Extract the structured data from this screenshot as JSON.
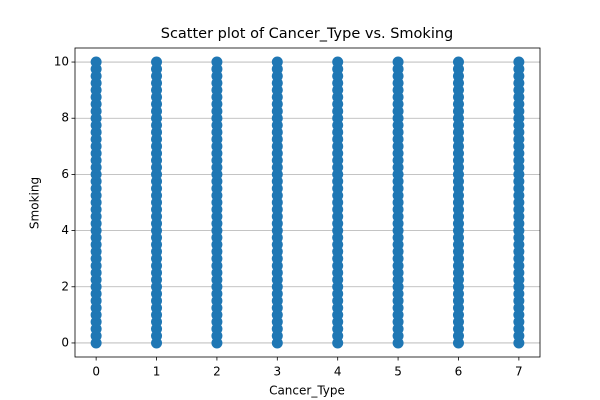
{
  "chart_data": {
    "type": "scatter",
    "title": "Scatter plot of Cancer_Type vs. Smoking",
    "x_label": "Cancer_Type",
    "y_label": "Smoking",
    "color": "#1f77b4",
    "grid": "y",
    "xlim": [
      -0.35,
      7.35
    ],
    "xticks": [
      0,
      1,
      2,
      3,
      4,
      5,
      6,
      7
    ],
    "ylim": [
      -0.5,
      10.5
    ],
    "yticks": [
      0,
      2,
      4,
      6,
      8,
      10
    ],
    "x": [
      0,
      0,
      0,
      0,
      0,
      0,
      0,
      0,
      0,
      0,
      0,
      0,
      0,
      0,
      0,
      0,
      0,
      0,
      0,
      0,
      0,
      0,
      0,
      0,
      0,
      0,
      0,
      0,
      0,
      0,
      0,
      0,
      0,
      0,
      0,
      0,
      0,
      0,
      0,
      0,
      0,
      1,
      1,
      1,
      1,
      1,
      1,
      1,
      1,
      1,
      1,
      1,
      1,
      1,
      1,
      1,
      1,
      1,
      1,
      1,
      1,
      1,
      1,
      1,
      1,
      1,
      1,
      1,
      1,
      1,
      1,
      1,
      1,
      1,
      1,
      1,
      1,
      1,
      1,
      1,
      1,
      1,
      2,
      2,
      2,
      2,
      2,
      2,
      2,
      2,
      2,
      2,
      2,
      2,
      2,
      2,
      2,
      2,
      2,
      2,
      2,
      2,
      2,
      2,
      2,
      2,
      2,
      2,
      2,
      2,
      2,
      2,
      2,
      2,
      2,
      2,
      2,
      2,
      2,
      2,
      2,
      2,
      2,
      3,
      3,
      3,
      3,
      3,
      3,
      3,
      3,
      3,
      3,
      3,
      3,
      3,
      3,
      3,
      3,
      3,
      3,
      3,
      3,
      3,
      3,
      3,
      3,
      3,
      3,
      3,
      3,
      3,
      3,
      3,
      3,
      3,
      3,
      3,
      3,
      3,
      3,
      3,
      3,
      3,
      4,
      4,
      4,
      4,
      4,
      4,
      4,
      4,
      4,
      4,
      4,
      4,
      4,
      4,
      4,
      4,
      4,
      4,
      4,
      4,
      4,
      4,
      4,
      4,
      4,
      4,
      4,
      4,
      4,
      4,
      4,
      4,
      4,
      4,
      4,
      4,
      4,
      4,
      4,
      4,
      4,
      5,
      5,
      5,
      5,
      5,
      5,
      5,
      5,
      5,
      5,
      5,
      5,
      5,
      5,
      5,
      5,
      5,
      5,
      5,
      5,
      5,
      5,
      5,
      5,
      5,
      5,
      5,
      5,
      5,
      5,
      5,
      5,
      5,
      5,
      5,
      5,
      5,
      5,
      5,
      5,
      5,
      6,
      6,
      6,
      6,
      6,
      6,
      6,
      6,
      6,
      6,
      6,
      6,
      6,
      6,
      6,
      6,
      6,
      6,
      6,
      6,
      6,
      6,
      6,
      6,
      6,
      6,
      6,
      6,
      6,
      6,
      6,
      6,
      6,
      6,
      6,
      6,
      6,
      6,
      6,
      6,
      6,
      7,
      7,
      7,
      7,
      7,
      7,
      7,
      7,
      7,
      7,
      7,
      7,
      7,
      7,
      7,
      7,
      7,
      7,
      7,
      7,
      7,
      7,
      7,
      7,
      7,
      7,
      7,
      7,
      7,
      7,
      7,
      7,
      7,
      7,
      7,
      7,
      7,
      7,
      7,
      7,
      7
    ],
    "y": [
      0,
      0.25,
      0.5,
      0.75,
      1,
      1.25,
      1.5,
      1.75,
      2,
      2.25,
      2.5,
      2.75,
      3,
      3.25,
      3.5,
      3.75,
      4,
      4.25,
      4.5,
      4.75,
      5,
      5.25,
      5.5,
      5.75,
      6,
      6.25,
      6.5,
      6.75,
      7,
      7.25,
      7.5,
      7.75,
      8,
      8.25,
      8.5,
      8.75,
      9,
      9.25,
      9.5,
      9.75,
      10,
      0,
      0.25,
      0.5,
      0.75,
      1,
      1.25,
      1.5,
      1.75,
      2,
      2.25,
      2.5,
      2.75,
      3,
      3.25,
      3.5,
      3.75,
      4,
      4.25,
      4.5,
      4.75,
      5,
      5.25,
      5.5,
      5.75,
      6,
      6.25,
      6.5,
      6.75,
      7,
      7.25,
      7.5,
      7.75,
      8,
      8.25,
      8.5,
      8.75,
      9,
      9.25,
      9.5,
      9.75,
      10,
      0,
      0.25,
      0.5,
      0.75,
      1,
      1.25,
      1.5,
      1.75,
      2,
      2.25,
      2.5,
      2.75,
      3,
      3.25,
      3.5,
      3.75,
      4,
      4.25,
      4.5,
      4.75,
      5,
      5.25,
      5.5,
      5.75,
      6,
      6.25,
      6.5,
      6.75,
      7,
      7.25,
      7.5,
      7.75,
      8,
      8.25,
      8.5,
      8.75,
      9,
      9.25,
      9.5,
      9.75,
      10,
      0,
      0.25,
      0.5,
      0.75,
      1,
      1.25,
      1.5,
      1.75,
      2,
      2.25,
      2.5,
      2.75,
      3,
      3.25,
      3.5,
      3.75,
      4,
      4.25,
      4.5,
      4.75,
      5,
      5.25,
      5.5,
      5.75,
      6,
      6.25,
      6.5,
      6.75,
      7,
      7.25,
      7.5,
      7.75,
      8,
      8.25,
      8.5,
      8.75,
      9,
      9.25,
      9.5,
      9.75,
      10,
      0,
      0.25,
      0.5,
      0.75,
      1,
      1.25,
      1.5,
      1.75,
      2,
      2.25,
      2.5,
      2.75,
      3,
      3.25,
      3.5,
      3.75,
      4,
      4.25,
      4.5,
      4.75,
      5,
      5.25,
      5.5,
      5.75,
      6,
      6.25,
      6.5,
      6.75,
      7,
      7.25,
      7.5,
      7.75,
      8,
      8.25,
      8.5,
      8.75,
      9,
      9.25,
      9.5,
      9.75,
      10,
      0,
      0.25,
      0.5,
      0.75,
      1,
      1.25,
      1.5,
      1.75,
      2,
      2.25,
      2.5,
      2.75,
      3,
      3.25,
      3.5,
      3.75,
      4,
      4.25,
      4.5,
      4.75,
      5,
      5.25,
      5.5,
      5.75,
      6,
      6.25,
      6.5,
      6.75,
      7,
      7.25,
      7.5,
      7.75,
      8,
      8.25,
      8.5,
      8.75,
      9,
      9.25,
      9.5,
      9.75,
      10,
      0,
      0.25,
      0.5,
      0.75,
      1,
      1.25,
      1.5,
      1.75,
      2,
      2.25,
      2.5,
      2.75,
      3,
      3.25,
      3.5,
      3.75,
      4,
      4.25,
      4.5,
      4.75,
      5,
      5.25,
      5.5,
      5.75,
      6,
      6.25,
      6.5,
      6.75,
      7,
      7.25,
      7.5,
      7.75,
      8,
      8.25,
      8.5,
      8.75,
      9,
      9.25,
      9.5,
      9.75,
      10,
      0,
      0.25,
      0.5,
      0.75,
      1,
      1.25,
      1.5,
      1.75,
      2,
      2.25,
      2.5,
      2.75,
      3,
      3.25,
      3.5,
      3.75,
      4,
      4.25,
      4.5,
      4.75,
      5,
      5.25,
      5.5,
      5.75,
      6,
      6.25,
      6.5,
      6.75,
      7,
      7.25,
      7.5,
      7.75,
      8,
      8.25,
      8.5,
      8.75,
      9,
      9.25,
      9.5,
      9.75,
      10
    ]
  }
}
